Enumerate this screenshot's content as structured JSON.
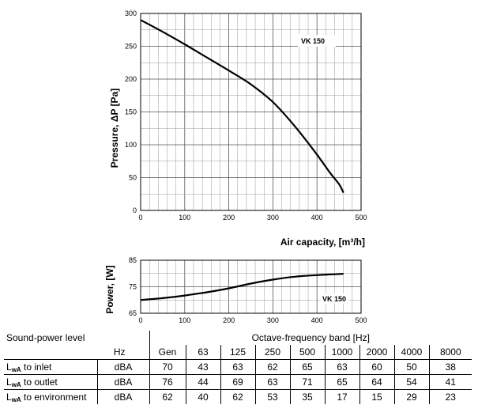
{
  "chart_data": [
    {
      "type": "line",
      "title": "",
      "xlabel": "Air capacity, [m³/h]",
      "ylabel": "Pressure, ΔP [Pa]",
      "xlim": [
        0,
        500
      ],
      "ylim": [
        0,
        300
      ],
      "x_ticks": [
        "0",
        "100",
        "200",
        "300",
        "400",
        "500"
      ],
      "y_ticks": [
        "0",
        "50",
        "100",
        "150",
        "200",
        "250",
        "300"
      ],
      "grid": true,
      "series": [
        {
          "name": "VK 150",
          "x": [
            0,
            50,
            100,
            150,
            200,
            250,
            300,
            350,
            400,
            430,
            450,
            460
          ],
          "y": [
            290,
            272,
            253,
            233,
            213,
            192,
            165,
            128,
            85,
            57,
            40,
            27
          ]
        }
      ]
    },
    {
      "type": "line",
      "title": "",
      "xlabel": "",
      "ylabel": "Power, [W]",
      "xlim": [
        0,
        500
      ],
      "ylim": [
        65,
        85
      ],
      "x_ticks": [
        "0",
        "100",
        "200",
        "300",
        "400",
        "500"
      ],
      "y_ticks": [
        "65",
        "75",
        "85"
      ],
      "grid": true,
      "series": [
        {
          "name": "VK 150",
          "x": [
            0,
            50,
            100,
            150,
            200,
            250,
            300,
            350,
            400,
            460
          ],
          "y": [
            70,
            70.7,
            71.7,
            72.9,
            74.4,
            76.2,
            77.7,
            78.8,
            79.4,
            79.9
          ]
        }
      ]
    }
  ],
  "table": {
    "title": "Sound-power level",
    "band_header": "Octave-frequency band [Hz]",
    "hz_label": "Hz",
    "columns": [
      "Gen",
      "63",
      "125",
      "250",
      "500",
      "1000",
      "2000",
      "4000",
      "8000"
    ],
    "rows": [
      {
        "label_main": "L",
        "label_sub": "wA",
        "label_rest": " to inlet",
        "unit": "dBA",
        "values": [
          "70",
          "43",
          "63",
          "62",
          "65",
          "63",
          "60",
          "50",
          "38"
        ]
      },
      {
        "label_main": "L",
        "label_sub": "wA",
        "label_rest": " to outlet",
        "unit": "dBA",
        "values": [
          "76",
          "44",
          "69",
          "63",
          "71",
          "65",
          "64",
          "54",
          "41"
        ]
      },
      {
        "label_main": "L",
        "label_sub": "wA",
        "label_rest": " to environment",
        "unit": "dBA",
        "values": [
          "62",
          "40",
          "62",
          "53",
          "35",
          "17",
          "15",
          "29",
          "23"
        ]
      }
    ]
  }
}
